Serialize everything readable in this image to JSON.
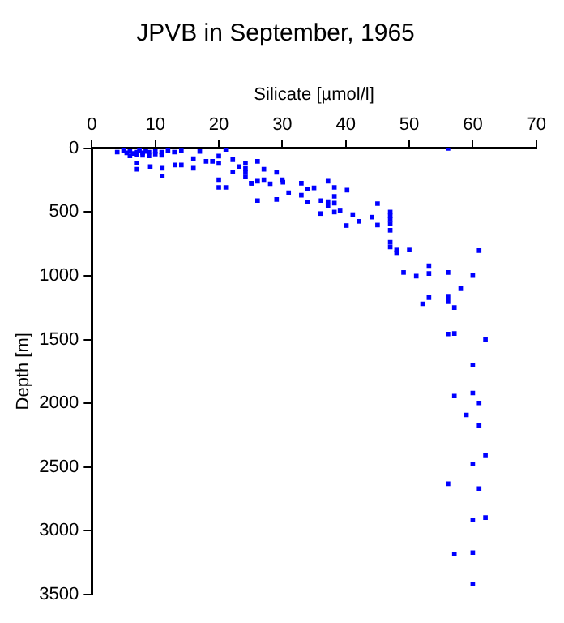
{
  "chart_data": {
    "type": "scatter",
    "title": "JPVB in September, 1965",
    "xlabel": "Silicate [µmol/l]",
    "ylabel": "Depth [m]",
    "xlim": [
      0,
      70
    ],
    "xticks": [
      0,
      10,
      20,
      30,
      40,
      50,
      60,
      70
    ],
    "ylim": [
      3500,
      0
    ],
    "yticks": [
      0,
      500,
      1000,
      1500,
      2000,
      2500,
      3000,
      3500
    ],
    "grid": false,
    "marker": "square",
    "legend": false,
    "series": [
      {
        "color": "#0000ff",
        "x": [
          4,
          5,
          5.5,
          6,
          6.5,
          7,
          7.5,
          8,
          8.5,
          9,
          10,
          11,
          12,
          13,
          14.1,
          6,
          7,
          8,
          9,
          10,
          11,
          7,
          7,
          9.2,
          11.1,
          11.1,
          13.1,
          14.1,
          16,
          17,
          16,
          18,
          19,
          20,
          20,
          21.1,
          20,
          21.1,
          20,
          22.2,
          22.2,
          23.2,
          24.2,
          24.2,
          24.2,
          24.2,
          26.1,
          25.1,
          27.1,
          29.1,
          28.1,
          29.1,
          26.1,
          30.1,
          31,
          33,
          33,
          30,
          25.2,
          26.1,
          27.1,
          34,
          35,
          37.2,
          38.2,
          34,
          36.1,
          37.2,
          38.2,
          38.2,
          40.2,
          36,
          37.2,
          38.2,
          39.1,
          40.1,
          41.1,
          42.1,
          44.1,
          45,
          45,
          47,
          47,
          47,
          47,
          47,
          47,
          47,
          48,
          48,
          50,
          61,
          49.1,
          51.1,
          53.1,
          53.1,
          56.1,
          60,
          58.1,
          56.1,
          56.1,
          57.1,
          53.1,
          52.1,
          56.1,
          57.1,
          62,
          60,
          60,
          57.1,
          61,
          59,
          61,
          62,
          60,
          56.1,
          61,
          60,
          62,
          57.1,
          60,
          60,
          56.1
        ],
        "values": [
          30,
          20,
          35,
          25,
          40,
          30,
          20,
          35,
          25,
          30,
          25,
          30,
          20,
          30,
          21,
          60,
          50,
          55,
          60,
          45,
          55,
          115,
          164,
          143,
          156,
          217,
          131,
          131,
          82,
          25,
          156,
          102,
          102,
          61,
          119,
          9,
          246,
          307,
          307,
          90,
          184,
          143,
          119,
          160,
          190,
          225,
          102,
          274,
          164,
          188,
          278,
          401,
          410,
          266,
          348,
          274,
          368,
          246,
          274,
          258,
          246,
          319,
          311,
          258,
          307,
          421,
          410,
          418,
          377,
          430,
          328,
          512,
          451,
          500,
          491,
          606,
          520,
          573,
          540,
          434,
          602,
          500,
          530,
          560,
          593,
          643,
          737,
          774,
          798,
          819,
          798,
          802,
          974,
          1003,
          921,
          982,
          974,
          998,
          1101,
          1167,
          1203,
          1249,
          1171,
          1220,
          1457,
          1453,
          1498,
          1699,
          1920,
          1944,
          1998,
          2092,
          2177,
          2407,
          2477,
          2632,
          2669,
          2914,
          2898,
          3184,
          3172,
          3418,
          0
        ]
      }
    ]
  }
}
